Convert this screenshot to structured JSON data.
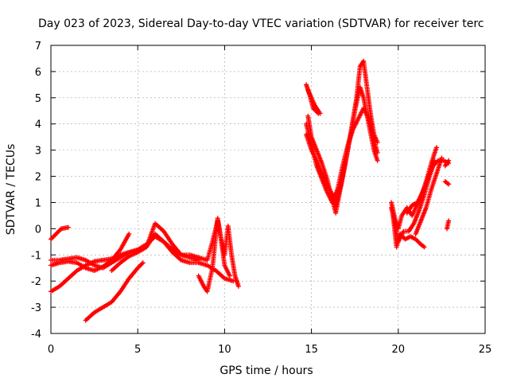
{
  "chart_data": {
    "type": "scatter",
    "title": "Day 023 of 2023, Sidereal Day-to-day VTEC variation (SDTVAR) for receiver terc",
    "xlabel": "GPS time / hours",
    "ylabel": "SDTVAR / TECUs",
    "xlim": [
      0,
      25
    ],
    "ylim": [
      -4,
      7
    ],
    "xticks": [
      "0",
      "5",
      "10",
      "15",
      "20",
      "25"
    ],
    "yticks": [
      "-4",
      "-3",
      "-2",
      "-1",
      "0",
      "1",
      "2",
      "3",
      "4",
      "5",
      "6",
      "7"
    ],
    "grid": true,
    "legend": "none",
    "marker": "plus",
    "series_color": "#ff0000",
    "tracks": [
      [
        [
          0.0,
          -0.4
        ],
        [
          0.3,
          -0.2
        ],
        [
          0.6,
          0.0
        ],
        [
          1.0,
          0.05
        ]
      ],
      [
        [
          0.0,
          -1.2
        ],
        [
          0.5,
          -1.2
        ],
        [
          1.0,
          -1.15
        ],
        [
          1.5,
          -1.1
        ],
        [
          2.0,
          -1.2
        ],
        [
          2.5,
          -1.4
        ],
        [
          3.0,
          -1.5
        ],
        [
          3.5,
          -1.3
        ],
        [
          4.0,
          -1.1
        ],
        [
          4.5,
          -0.9
        ],
        [
          5.0,
          -0.8
        ],
        [
          5.5,
          -0.6
        ],
        [
          6.0,
          -0.3
        ],
        [
          6.5,
          -0.5
        ],
        [
          7.0,
          -0.8
        ],
        [
          7.5,
          -1.0
        ],
        [
          8.0,
          -1.1
        ],
        [
          8.5,
          -1.2
        ]
      ],
      [
        [
          0.0,
          -1.4
        ],
        [
          0.5,
          -1.3
        ],
        [
          1.0,
          -1.25
        ],
        [
          1.5,
          -1.3
        ],
        [
          2.0,
          -1.5
        ],
        [
          2.5,
          -1.6
        ],
        [
          3.0,
          -1.45
        ],
        [
          3.5,
          -1.2
        ],
        [
          4.0,
          -0.8
        ],
        [
          4.5,
          -0.2
        ]
      ],
      [
        [
          0.0,
          -2.4
        ],
        [
          0.5,
          -2.2
        ],
        [
          1.0,
          -1.9
        ],
        [
          1.5,
          -1.6
        ],
        [
          2.0,
          -1.4
        ],
        [
          2.5,
          -1.25
        ],
        [
          3.0,
          -1.2
        ],
        [
          3.5,
          -1.15
        ],
        [
          4.0,
          -1.0
        ],
        [
          4.5,
          -0.9
        ],
        [
          5.0,
          -0.85
        ],
        [
          5.5,
          -0.7
        ],
        [
          6.0,
          -0.2
        ],
        [
          6.5,
          -0.5
        ],
        [
          7.0,
          -0.9
        ],
        [
          7.5,
          -1.2
        ],
        [
          8.0,
          -1.3
        ],
        [
          8.5,
          -1.3
        ],
        [
          9.0,
          -1.4
        ],
        [
          9.5,
          -1.6
        ],
        [
          10.0,
          -1.9
        ],
        [
          10.5,
          -2.0
        ]
      ],
      [
        [
          3.5,
          -1.6
        ],
        [
          4.0,
          -1.3
        ],
        [
          4.5,
          -1.05
        ],
        [
          5.0,
          -0.9
        ],
        [
          5.5,
          -0.7
        ],
        [
          6.0,
          0.2
        ],
        [
          6.5,
          -0.1
        ],
        [
          7.0,
          -0.6
        ],
        [
          7.5,
          -1.0
        ],
        [
          8.0,
          -1.0
        ],
        [
          8.5,
          -1.1
        ],
        [
          9.0,
          -1.2
        ],
        [
          9.3,
          -0.5
        ],
        [
          9.6,
          0.3
        ],
        [
          9.8,
          -0.4
        ],
        [
          10.0,
          -1.4
        ],
        [
          10.3,
          -1.8
        ]
      ],
      [
        [
          2.0,
          -3.5
        ],
        [
          2.5,
          -3.2
        ],
        [
          3.0,
          -3.0
        ],
        [
          3.5,
          -2.8
        ],
        [
          4.0,
          -2.4
        ],
        [
          4.5,
          -1.9
        ],
        [
          5.0,
          -1.5
        ],
        [
          5.3,
          -1.3
        ]
      ],
      [
        [
          8.5,
          -1.8
        ],
        [
          8.8,
          -2.2
        ],
        [
          9.0,
          -2.4
        ],
        [
          9.3,
          -1.5
        ],
        [
          9.6,
          0.4
        ],
        [
          9.8,
          -0.4
        ],
        [
          10.0,
          -1.0
        ],
        [
          10.2,
          0.1
        ],
        [
          10.4,
          -1.0
        ],
        [
          10.6,
          -1.8
        ],
        [
          10.8,
          -2.2
        ]
      ],
      [
        [
          14.7,
          5.5
        ],
        [
          14.9,
          5.1
        ],
        [
          15.1,
          4.6
        ],
        [
          15.4,
          4.4
        ]
      ],
      [
        [
          14.8,
          5.3
        ],
        [
          15.0,
          5.0
        ],
        [
          15.2,
          4.7
        ],
        [
          15.5,
          4.4
        ]
      ],
      [
        [
          14.8,
          4.3
        ],
        [
          15.0,
          3.5
        ],
        [
          15.3,
          3.0
        ],
        [
          15.6,
          2.5
        ],
        [
          15.9,
          1.9
        ],
        [
          16.2,
          1.1
        ],
        [
          16.4,
          0.6
        ],
        [
          16.6,
          1.3
        ],
        [
          16.9,
          2.3
        ],
        [
          17.2,
          3.4
        ],
        [
          17.5,
          4.5
        ],
        [
          17.8,
          5.4
        ],
        [
          18.0,
          5.0
        ],
        [
          18.3,
          4.0
        ],
        [
          18.6,
          3.0
        ],
        [
          18.8,
          2.6
        ]
      ],
      [
        [
          14.7,
          3.6
        ],
        [
          15.0,
          3.0
        ],
        [
          15.3,
          2.6
        ],
        [
          15.6,
          2.1
        ],
        [
          15.9,
          1.7
        ],
        [
          16.2,
          1.3
        ],
        [
          16.4,
          0.9
        ],
        [
          16.7,
          1.7
        ],
        [
          17.0,
          2.7
        ],
        [
          17.3,
          3.8
        ],
        [
          17.6,
          5.0
        ],
        [
          17.8,
          6.2
        ],
        [
          18.0,
          6.4
        ],
        [
          18.2,
          5.4
        ],
        [
          18.4,
          4.4
        ],
        [
          18.6,
          3.6
        ],
        [
          18.8,
          3.3
        ]
      ],
      [
        [
          14.7,
          4.0
        ],
        [
          15.0,
          3.2
        ],
        [
          15.3,
          2.4
        ],
        [
          15.6,
          1.9
        ],
        [
          15.9,
          1.4
        ],
        [
          16.2,
          1.0
        ],
        [
          16.5,
          1.5
        ],
        [
          16.8,
          2.4
        ],
        [
          17.1,
          3.2
        ],
        [
          17.4,
          3.8
        ],
        [
          17.7,
          4.2
        ],
        [
          18.0,
          4.6
        ],
        [
          18.3,
          4.2
        ],
        [
          18.6,
          3.4
        ],
        [
          18.8,
          2.9
        ]
      ],
      [
        [
          19.6,
          1.0
        ],
        [
          19.8,
          0.4
        ],
        [
          20.0,
          0.0
        ],
        [
          20.2,
          0.5
        ],
        [
          20.5,
          0.8
        ],
        [
          20.8,
          0.5
        ],
        [
          21.0,
          0.8
        ],
        [
          21.3,
          1.2
        ],
        [
          21.6,
          1.8
        ],
        [
          21.9,
          2.5
        ],
        [
          22.2,
          3.1
        ]
      ],
      [
        [
          19.6,
          0.8
        ],
        [
          19.8,
          0.2
        ],
        [
          20.0,
          -0.5
        ],
        [
          20.3,
          -0.1
        ],
        [
          20.6,
          -0.1
        ],
        [
          20.9,
          0.2
        ],
        [
          21.2,
          0.7
        ],
        [
          21.5,
          1.3
        ],
        [
          21.8,
          2.0
        ],
        [
          22.1,
          2.6
        ]
      ],
      [
        [
          19.7,
          0.5
        ],
        [
          19.9,
          -0.7
        ],
        [
          20.1,
          -0.2
        ],
        [
          20.4,
          -0.4
        ],
        [
          20.7,
          -0.3
        ],
        [
          21.0,
          -0.4
        ],
        [
          21.3,
          -0.6
        ],
        [
          21.5,
          -0.7
        ]
      ],
      [
        [
          20.5,
          0.6
        ],
        [
          20.8,
          0.9
        ],
        [
          21.1,
          1.0
        ],
        [
          21.4,
          1.4
        ],
        [
          21.7,
          1.9
        ],
        [
          22.0,
          2.4
        ],
        [
          22.3,
          2.6
        ],
        [
          22.6,
          2.6
        ],
        [
          22.9,
          2.5
        ]
      ],
      [
        [
          21.0,
          -0.2
        ],
        [
          21.3,
          0.3
        ],
        [
          21.6,
          0.8
        ],
        [
          21.9,
          1.5
        ],
        [
          22.2,
          2.1
        ],
        [
          22.5,
          2.7
        ]
      ],
      [
        [
          22.7,
          2.4
        ],
        [
          22.9,
          2.6
        ]
      ],
      [
        [
          22.7,
          1.8
        ],
        [
          22.9,
          1.7
        ]
      ],
      [
        [
          22.8,
          0.0
        ],
        [
          22.9,
          0.3
        ]
      ]
    ]
  }
}
